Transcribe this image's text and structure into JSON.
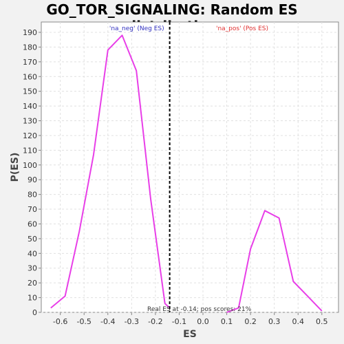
{
  "chart_data": {
    "type": "line",
    "title": "GO_TOR_SIGNALING: Random ES distribution",
    "xlabel": "ES",
    "ylabel": "P(ES)",
    "xlim": [
      -0.68,
      0.57
    ],
    "ylim": [
      0,
      197
    ],
    "xticks": [
      -0.6,
      -0.5,
      -0.4,
      -0.3,
      -0.2,
      -0.1,
      0.0,
      0.1,
      0.2,
      0.3,
      0.4,
      0.5
    ],
    "xtick_labels": [
      "-0.6",
      "-0.5",
      "-0.4",
      "-0.3",
      "-0.2",
      "-0.1",
      "0.0",
      "0.1",
      "0.2",
      "0.3",
      "0.4",
      "0.5"
    ],
    "yticks": [
      0,
      10,
      20,
      30,
      40,
      50,
      60,
      70,
      80,
      90,
      100,
      110,
      120,
      130,
      140,
      150,
      160,
      170,
      180,
      190
    ],
    "grid": true,
    "series": [
      {
        "color": "#e83ee8",
        "x": [
          -0.64,
          -0.58,
          -0.52,
          -0.46,
          -0.4,
          -0.34,
          -0.28,
          -0.22,
          -0.16,
          -0.14
        ],
        "y": [
          3,
          11,
          55,
          107,
          178,
          188,
          164,
          77,
          6,
          3
        ]
      },
      {
        "color": "#e83ee8",
        "x": [
          0.1,
          0.15,
          0.2,
          0.26,
          0.32,
          0.38,
          0.44,
          0.5
        ],
        "y": [
          0,
          3,
          43,
          69,
          64,
          21,
          11,
          1
        ]
      }
    ],
    "vline": {
      "x": -0.14,
      "color": "#000000",
      "style": "dashed"
    },
    "annotations": {
      "neg_label": {
        "text": "'na_neg' (Neg ES)",
        "color": "#3030c0"
      },
      "pos_label": {
        "text": "'na_pos' (Pos ES)",
        "color": "#e03030"
      },
      "bottom_label": {
        "text": "Real ES at -0.14; pos scores: 21%",
        "color": "#333333"
      }
    }
  }
}
